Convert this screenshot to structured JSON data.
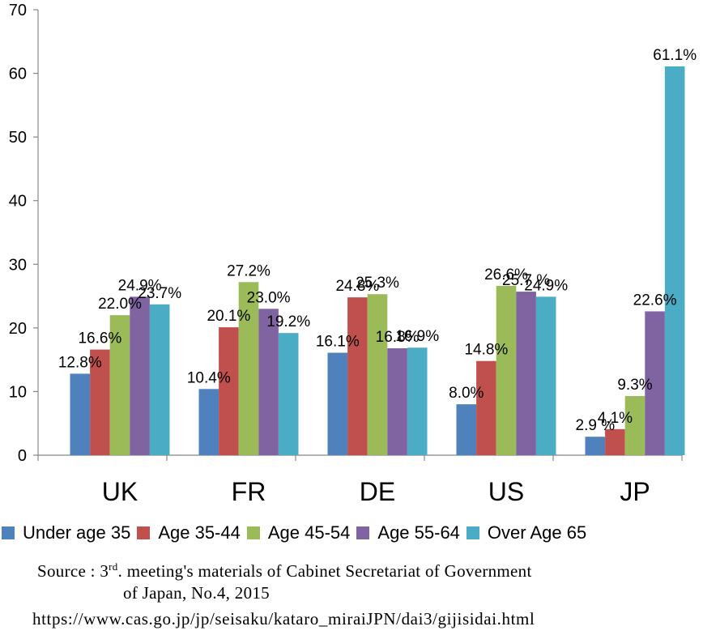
{
  "chart_data": {
    "type": "bar",
    "categories": [
      "UK",
      "FR",
      "DE",
      "US",
      "JP"
    ],
    "series": [
      {
        "name": "Under age 35",
        "color": "#4f81bd",
        "values": [
          12.8,
          10.4,
          16.1,
          8.0,
          2.9
        ],
        "labels": [
          "12.8%",
          "10.4%",
          "16.1%",
          "8.0%",
          "2.9 %"
        ]
      },
      {
        "name": "Age 35-44",
        "color": "#c0504d",
        "values": [
          16.6,
          20.1,
          24.8,
          14.8,
          4.1
        ],
        "labels": [
          "16.6%",
          "20.1%",
          "24.8%",
          "14.8%",
          "4.1%"
        ]
      },
      {
        "name": "Age 45-54",
        "color": "#9bbb59",
        "values": [
          22.0,
          27.2,
          25.3,
          26.6,
          9.3
        ],
        "labels": [
          "22.0%",
          "27.2%",
          "25.3%",
          "26.6%",
          "9.3%"
        ]
      },
      {
        "name": "Age 55-64",
        "color": "#8064a2",
        "values": [
          24.9,
          23.0,
          16.8,
          25.7,
          22.6
        ],
        "labels": [
          "24.9%",
          "23.0%",
          "16.8%",
          "25.7 %",
          "22.6%"
        ]
      },
      {
        "name": "Over Age 65",
        "color": "#4bacc6",
        "values": [
          23.7,
          19.2,
          16.9,
          24.9,
          61.1
        ],
        "labels": [
          "23.7%",
          "19.2%",
          "16.9%",
          "24.9%",
          "61.1%"
        ]
      }
    ],
    "yticks": [
      "0",
      "10",
      "20",
      "30",
      "40",
      "50",
      "60",
      "70"
    ],
    "ylim": [
      0,
      70
    ],
    "grid": false,
    "legend_position": "bottom"
  },
  "source": {
    "prefix": "Source :  3",
    "sup": "rd",
    "line1_rest": ". meeting's materials of Cabinet Secretariat of Government",
    "line2": "of Japan, No.4, 2015",
    "url": "https://www.cas.go.jp/jp/seisaku/kataro_miraiJPN/dai3/gijisidai.html"
  }
}
